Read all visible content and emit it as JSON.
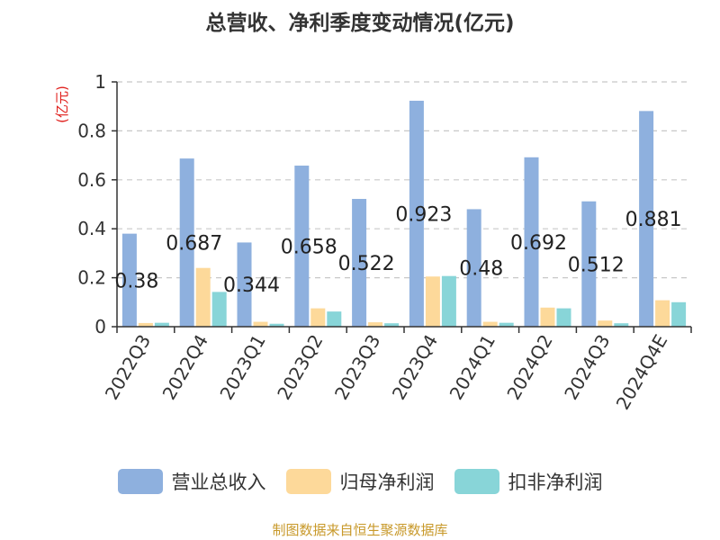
{
  "chart_data": {
    "type": "bar",
    "title": "总营收、净利季度变动情况(亿元)",
    "ylabel": "(亿元)",
    "xlabel": "",
    "ylim": [
      0,
      1
    ],
    "yticks": [
      "0",
      "0.2",
      "0.4",
      "0.6",
      "0.8",
      "1"
    ],
    "ytick_values": [
      0,
      0.2,
      0.4,
      0.6,
      0.8,
      1
    ],
    "grid": true,
    "legend_position": "bottom",
    "categories": [
      "2022Q3",
      "2022Q4",
      "2023Q1",
      "2023Q2",
      "2023Q3",
      "2023Q4",
      "2024Q1",
      "2024Q2",
      "2024Q3",
      "2024Q4E"
    ],
    "series": [
      {
        "name": "营业总收入",
        "color": "#8eb0de",
        "values": [
          0.38,
          0.687,
          0.344,
          0.658,
          0.522,
          0.923,
          0.48,
          0.692,
          0.512,
          0.881
        ],
        "labels": [
          "0.38",
          "0.687",
          "0.344",
          "0.658",
          "0.522",
          "0.923",
          "0.48",
          "0.692",
          "0.512",
          "0.881"
        ]
      },
      {
        "name": "归母净利润",
        "color": "#fdd99a",
        "values": [
          0.015,
          0.24,
          0.02,
          0.075,
          0.018,
          0.205,
          0.02,
          0.078,
          0.025,
          0.108
        ]
      },
      {
        "name": "扣非净利润",
        "color": "#88d5d8",
        "values": [
          0.016,
          0.142,
          0.012,
          0.062,
          0.014,
          0.207,
          0.016,
          0.075,
          0.014,
          0.1
        ]
      }
    ]
  },
  "source": {
    "text": "制图数据来自恒生聚源数据库",
    "color": "#c8992a"
  },
  "ylabel_color": "#e0201c"
}
